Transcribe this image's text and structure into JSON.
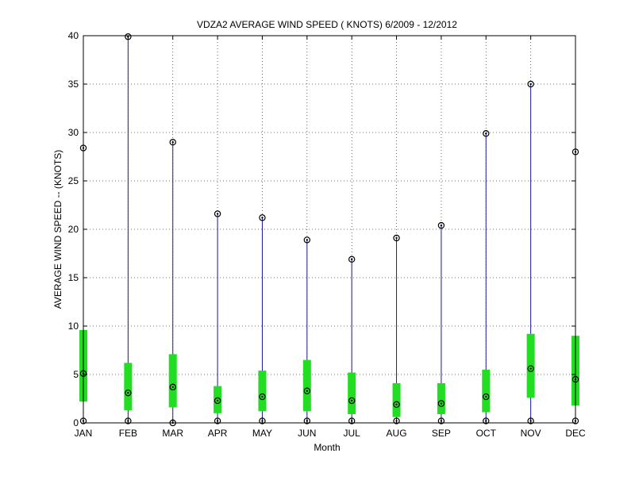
{
  "chart_data": {
    "type": "box",
    "title": "VDZA2  AVERAGE WIND SPEED ( KNOTS) 6/2009 - 12/2012",
    "xlabel": "Month",
    "ylabel": "AVERAGE WIND SPEED -- (KNOTS)",
    "ylim": [
      0,
      40
    ],
    "yticks": [
      0,
      5,
      10,
      15,
      20,
      25,
      30,
      35,
      40
    ],
    "grid": true,
    "categories": [
      "JAN",
      "FEB",
      "MAR",
      "APR",
      "MAY",
      "JUN",
      "JUL",
      "AUG",
      "SEP",
      "OCT",
      "NOV",
      "DEC"
    ],
    "series": [
      {
        "min": [
          0.2,
          0.2,
          0.0,
          0.2,
          0.2,
          0.2,
          0.2,
          0.2,
          0.2,
          0.2,
          0.2,
          0.2
        ],
        "q1": [
          2.2,
          1.3,
          1.6,
          1.0,
          1.2,
          1.2,
          0.9,
          0.6,
          0.9,
          1.1,
          2.6,
          1.8
        ],
        "median": [
          5.1,
          3.1,
          3.7,
          2.3,
          2.7,
          3.3,
          2.3,
          1.9,
          2.0,
          2.7,
          5.6,
          4.5
        ],
        "q3": [
          9.6,
          6.2,
          7.1,
          3.8,
          5.4,
          6.5,
          5.2,
          4.1,
          4.1,
          5.5,
          9.2,
          9.0
        ],
        "max": [
          28.4,
          39.9,
          29.0,
          21.6,
          21.2,
          18.9,
          16.9,
          19.1,
          20.4,
          29.9,
          35.0,
          28.0
        ]
      }
    ],
    "colors": {
      "whisker": "#1a1aa0",
      "box": "#22dd22",
      "marker": "#000000",
      "grid": "#444444"
    }
  }
}
